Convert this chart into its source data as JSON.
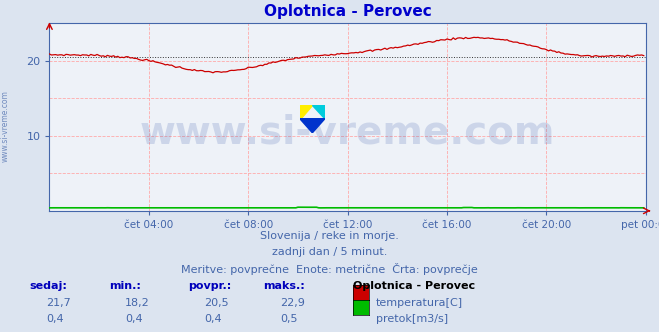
{
  "title": "Oplotnica - Perovec",
  "title_color": "#0000cc",
  "bg_color": "#dce4f0",
  "plot_bg_color": "#eef2f8",
  "grid_color_v": "#ffaaaa",
  "grid_color_h": "#ffaaaa",
  "axis_color": "#4466aa",
  "tick_color": "#4466aa",
  "xlabel_ticks": [
    "čet 04:00",
    "čet 08:00",
    "čet 12:00",
    "čet 16:00",
    "čet 20:00",
    "pet 00:00"
  ],
  "ylim": [
    0,
    25
  ],
  "yticks": [
    10,
    20
  ],
  "watermark_text": "www.si-vreme.com",
  "watermark_color": "#3355aa",
  "watermark_alpha": 0.18,
  "watermark_fontsize": 28,
  "left_label": "www.si-vreme.com",
  "left_label_color": "#4466aa",
  "subtitle1": "Slovenija / reke in morje.",
  "subtitle2": "zadnji dan / 5 minut.",
  "subtitle3": "Meritve: povprečne  Enote: metrične  Črta: povprečje",
  "subtitle_color": "#4466aa",
  "subtitle_fontsize": 8,
  "legend_title": "Oplotnica - Perovec",
  "table_headers": [
    "sedaj:",
    "min.:",
    "povpr.:",
    "maks.:"
  ],
  "temp_row": [
    "21,7",
    "18,2",
    "20,5",
    "22,9"
  ],
  "flow_row": [
    "0,4",
    "0,4",
    "0,4",
    "0,5"
  ],
  "temp_label": "temperatura[C]",
  "flow_label": "pretok[m3/s]",
  "temp_color": "#cc0000",
  "flow_color": "#00bb00",
  "avg_color": "#cc0000",
  "avg_value": 20.5,
  "n_points": 288,
  "icon_colors": [
    "#ffee00",
    "#00ccdd",
    "#0033cc"
  ],
  "arrow_color": "#cc0000"
}
